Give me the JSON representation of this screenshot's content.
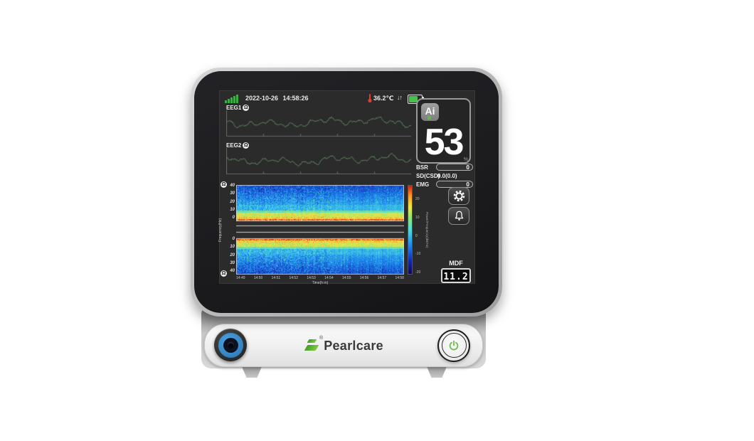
{
  "brand": {
    "name": "Pearlcare",
    "reg": "®"
  },
  "status_bar": {
    "datetime": "2022-10-26 14:58:26",
    "temperature": "36.2℃",
    "arrows": "↓↑"
  },
  "eeg": {
    "ch1_label": "EEG1",
    "ch2_label": "EEG2",
    "impedance_symbol": "Ω"
  },
  "ai_panel": {
    "logo": "Ai",
    "index_value": "53",
    "unit": "%"
  },
  "metrics": {
    "bsr_label": "BSR",
    "bsr_value": "0",
    "sd_label": "SD(CSD)",
    "sd_value": "0.0(0.0)",
    "emg_label": "EMG",
    "emg_value": "0"
  },
  "mdf": {
    "label": "MDF",
    "value": "11.2"
  },
  "dsa": {
    "ylabel": "Frequency(Hz)",
    "xlabel": "Time(h:m)",
    "freq_ticks_top": [
      "40",
      "30",
      "20",
      "10",
      "0"
    ],
    "freq_ticks_bottom": [
      "0",
      "10",
      "20",
      "30",
      "40"
    ],
    "time_ticks": [
      "14:49",
      "14:50",
      "14:51",
      "14:52",
      "14:53",
      "14:54",
      "14:55",
      "14:56",
      "14:57",
      "14:58"
    ],
    "colorbar_label": "Power/Frequency(dB/Hz)",
    "colorbar_ticks": [
      "20",
      "10",
      "0",
      "-10",
      "-20"
    ]
  },
  "colors": {
    "screen_bg": "#2b2b2b",
    "wave": "#5f815f",
    "signal_green": "#3fae49",
    "battery_green": "#46c24a",
    "brand_green": "#52b531",
    "power_green": "#6abf45",
    "knob_blue": "#2e86c8",
    "thermometer_red": "#e03c31",
    "colormap": [
      [
        "0.00",
        "#0a0a50"
      ],
      [
        "0.15",
        "#1428b4"
      ],
      [
        "0.33",
        "#1e8cf0"
      ],
      [
        "0.50",
        "#50dcdc"
      ],
      [
        "0.63",
        "#8ce678"
      ],
      [
        "0.76",
        "#f0e646"
      ],
      [
        "0.89",
        "#fa9628"
      ],
      [
        "1.00",
        "#d41e14"
      ]
    ]
  }
}
